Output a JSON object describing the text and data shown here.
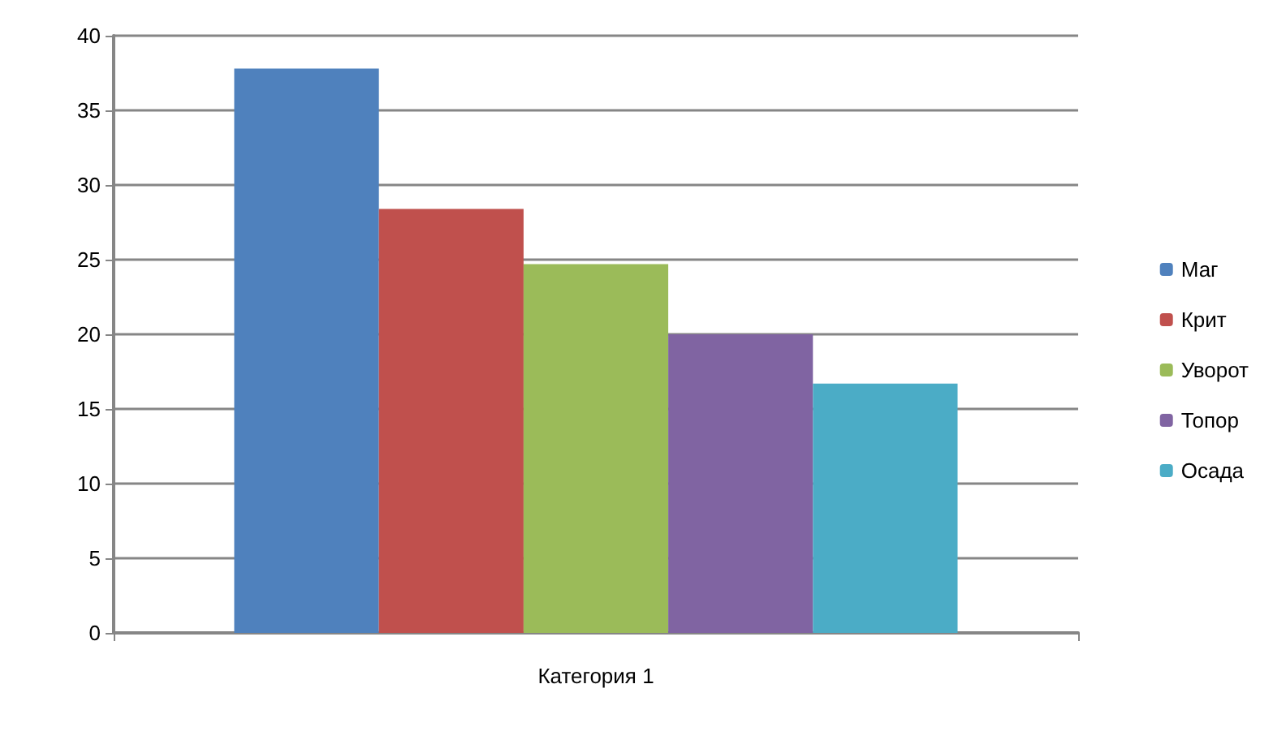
{
  "chart_data": {
    "type": "bar",
    "categories": [
      "Категория 1"
    ],
    "series": [
      {
        "name": "Маг",
        "color": "#4f81bd",
        "values": [
          37.8
        ]
      },
      {
        "name": "Крит",
        "color": "#c0504d",
        "values": [
          28.4
        ]
      },
      {
        "name": "Уворот",
        "color": "#9bbb59",
        "values": [
          24.7
        ]
      },
      {
        "name": "Топор",
        "color": "#8064a2",
        "values": [
          20.0
        ]
      },
      {
        "name": "Осада",
        "color": "#4bacc6",
        "values": [
          16.7
        ]
      }
    ],
    "ylim": [
      0,
      40
    ],
    "yticks": [
      0,
      5,
      10,
      15,
      20,
      25,
      30,
      35,
      40
    ],
    "grid": "y",
    "legend": "right"
  }
}
